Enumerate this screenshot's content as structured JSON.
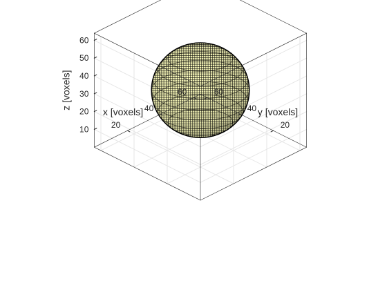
{
  "chart_data": {
    "type": "voxel-3d",
    "title": "",
    "xlabel": "x [voxels]",
    "ylabel": "y [voxels]",
    "zlabel": "z [voxels]",
    "xlim": [
      0,
      64
    ],
    "ylim": [
      0,
      64
    ],
    "zlim": [
      0,
      64
    ],
    "xticks": [
      20,
      40,
      60
    ],
    "yticks": [
      20,
      40,
      60
    ],
    "zticks": [
      10,
      20,
      30,
      40,
      50,
      60
    ],
    "grid": true,
    "box": true,
    "object": {
      "shape": "sphere",
      "center": [
        32,
        32,
        32
      ],
      "radius": 24,
      "voxel_size": 1
    },
    "colors": {
      "voxel_face": "#ffffbf",
      "voxel_edge": "#000000",
      "axes": "#262626",
      "grid": "#e6e6e6",
      "background": "#ffffff"
    }
  }
}
